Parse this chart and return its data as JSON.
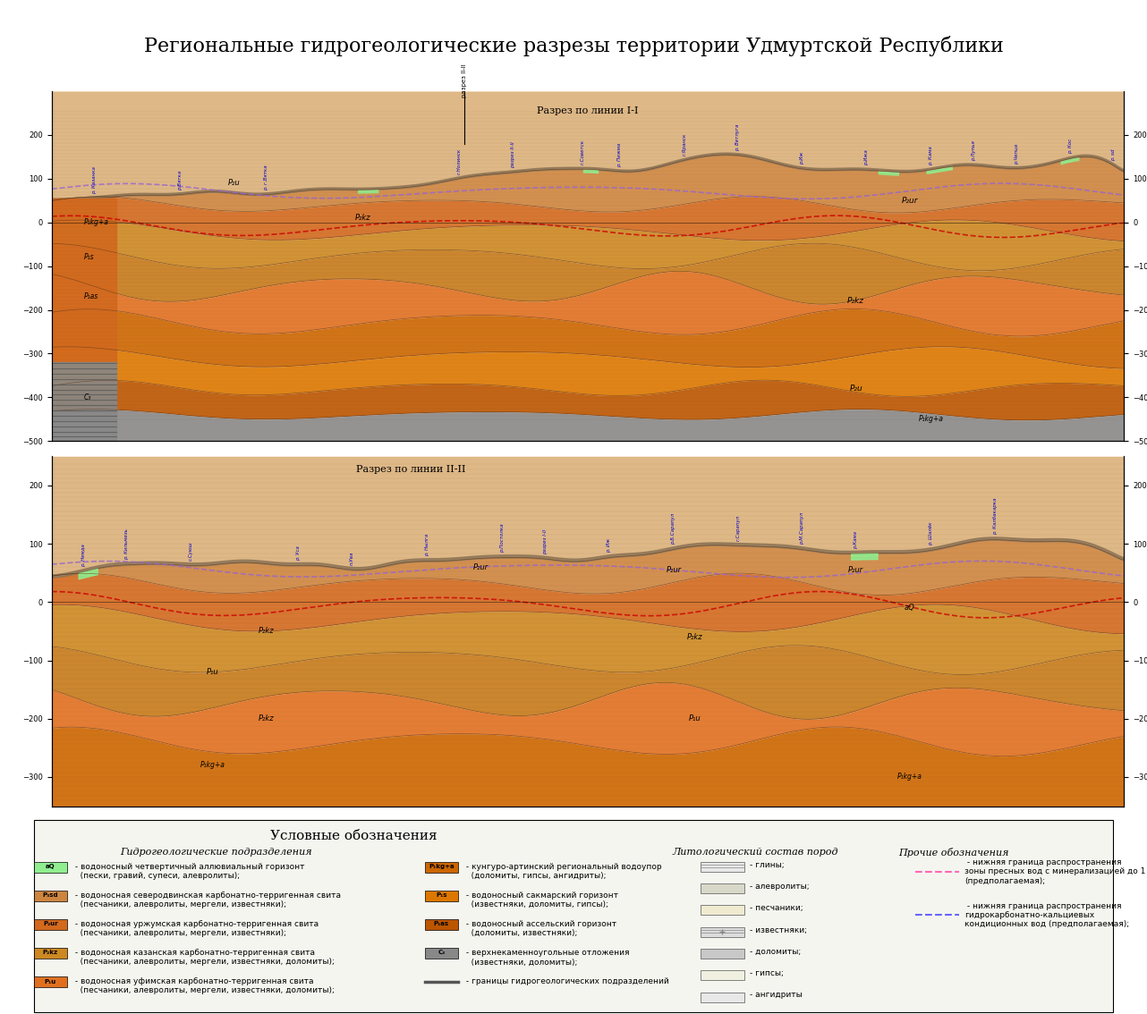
{
  "title": "Региональные гидрогеологические разрезы территории Удмуртской Республики",
  "title_fontsize": 16,
  "background_color": "#ffffff",
  "section1_title": "Разрез по линии I-I",
  "section2_title": "Разрез по линии II-II",
  "legend_title": "Условные обозначения",
  "legend_subtitle1": "Гидрогеологические подразделения",
  "legend_subtitle2": "Литологический состав пород",
  "legend_subtitle3": "Прочие обозначения",
  "orange_color": "#D2691E",
  "orange_light": "#E8935A",
  "orange_dark": "#A0522D",
  "orange_darker": "#8B4513",
  "brown_dark": "#5C3317",
  "gray_color": "#808080",
  "gray_light": "#C0C0C0",
  "green_aq": "#90EE90",
  "legend_items_left": [
    {
      "color": "#90EE90",
      "label_code": "aQ",
      "label": " - водоносный четвертичный аллювиальный горизонт\n(пески, гравий, супеси, алевролиты);"
    },
    {
      "color": "#CD853F",
      "label_code": "P₃sd",
      "label": " - водоносная северодвинская карбонатно-терригенная свита\n(песчаники, алевролиты, мергели, известняки);"
    },
    {
      "color": "#D2691E",
      "label_code": "P₂ur",
      "label": " - водоносная уржумская карбонатно-терригенная свита\n(песчаники, алевролиты, мергели, известняки);"
    },
    {
      "color": "#CC8822",
      "label_code": "P₂kz",
      "label": " - водоносная казанская карбонатно-терригенная свита\n(песчаники, алевролиты, мергели, известняки, доломиты);"
    },
    {
      "color": "#E07020",
      "label_code": "P₁u",
      "label": " - водоносная уфимская карбонатно-терригенная свита\n(песчаники, алевролиты, мергели, известняки, доломиты);"
    }
  ],
  "legend_items_right": [
    {
      "color": "#CC6600",
      "label_code": "P₁kg+a",
      "label": " - кунгуро-артинский региональный водоупор\n(доломиты, гипсы, ангидриты);"
    },
    {
      "color": "#DD7700",
      "label_code": "P₁s",
      "label": " - водоносный сакмарский горизонт\n(известняки, доломиты, гипсы);"
    },
    {
      "color": "#BB5500",
      "label_code": "P₁as",
      "label": " - водоносный ассельский горизонт\n(доломиты, известняки);"
    },
    {
      "color": "#888888",
      "label_code": "C₃",
      "label": " - верхнекаменноугольные отложения\n(известняки, доломиты);"
    },
    {
      "color": "#555555",
      "label_code": "",
      "label": " - границы гидрогеологических подразделений"
    }
  ]
}
